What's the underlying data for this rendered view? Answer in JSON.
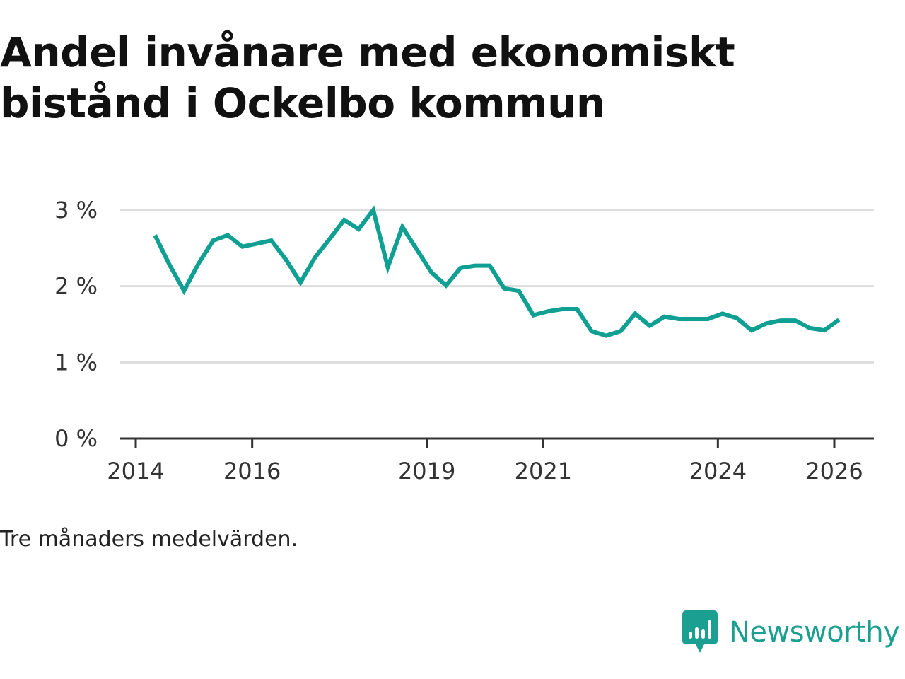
{
  "colors": {
    "line": "#0f9f93",
    "grid": "#dddddd",
    "axis": "#333333",
    "brand": "#1a9f91"
  },
  "chart_data": {
    "type": "line",
    "title": "Andel invånare med ekonomiskt bistånd i Ockelbo kommun",
    "xlabel": "",
    "ylabel": "",
    "ylim": [
      0,
      3
    ],
    "xlim": [
      2014,
      2026.35
    ],
    "yticks": [
      {
        "value": 0,
        "label": "0 %"
      },
      {
        "value": 1,
        "label": "1 %"
      },
      {
        "value": 2,
        "label": "2 %"
      },
      {
        "value": 3,
        "label": "3 %"
      }
    ],
    "xticks": [
      {
        "value": 2014,
        "label": "2014"
      },
      {
        "value": 2016,
        "label": "2016"
      },
      {
        "value": 2019,
        "label": "2019"
      },
      {
        "value": 2021,
        "label": "2021"
      },
      {
        "value": 2024,
        "label": "2024"
      },
      {
        "value": 2026,
        "label": "2026"
      }
    ],
    "series": [
      {
        "name": "Andel invånare med ekonomiskt bistånd",
        "x": [
          2014.33,
          2014.58,
          2014.83,
          2015.08,
          2015.33,
          2015.58,
          2015.83,
          2016.08,
          2016.33,
          2016.58,
          2016.83,
          2017.08,
          2017.33,
          2017.58,
          2017.83,
          2018.08,
          2018.33,
          2018.58,
          2018.83,
          2019.08,
          2019.33,
          2019.58,
          2019.83,
          2020.08,
          2020.33,
          2020.58,
          2020.83,
          2021.08,
          2021.33,
          2021.58,
          2021.83,
          2022.08,
          2022.33,
          2022.58,
          2022.83,
          2023.08,
          2023.33,
          2023.58,
          2023.83,
          2024.08,
          2024.33,
          2024.58,
          2024.83,
          2025.08,
          2025.33,
          2025.58,
          2025.83,
          2026.08
        ],
        "values": [
          2.67,
          2.28,
          1.94,
          2.3,
          2.6,
          2.67,
          2.52,
          2.56,
          2.6,
          2.35,
          2.05,
          2.38,
          2.62,
          2.87,
          2.75,
          3.0,
          2.25,
          2.78,
          2.48,
          2.18,
          2.01,
          2.24,
          2.27,
          2.27,
          1.97,
          1.94,
          1.62,
          1.67,
          1.7,
          1.7,
          1.41,
          1.35,
          1.41,
          1.64,
          1.48,
          1.6,
          1.57,
          1.57,
          1.57,
          1.64,
          1.58,
          1.42,
          1.51,
          1.55,
          1.55,
          1.45,
          1.42,
          1.56
        ]
      }
    ]
  },
  "footer": {
    "note": "Tre månaders medelvärden.",
    "brand_name": "Newsworthy",
    "brand_icon": "newsworthy-logo-icon"
  }
}
